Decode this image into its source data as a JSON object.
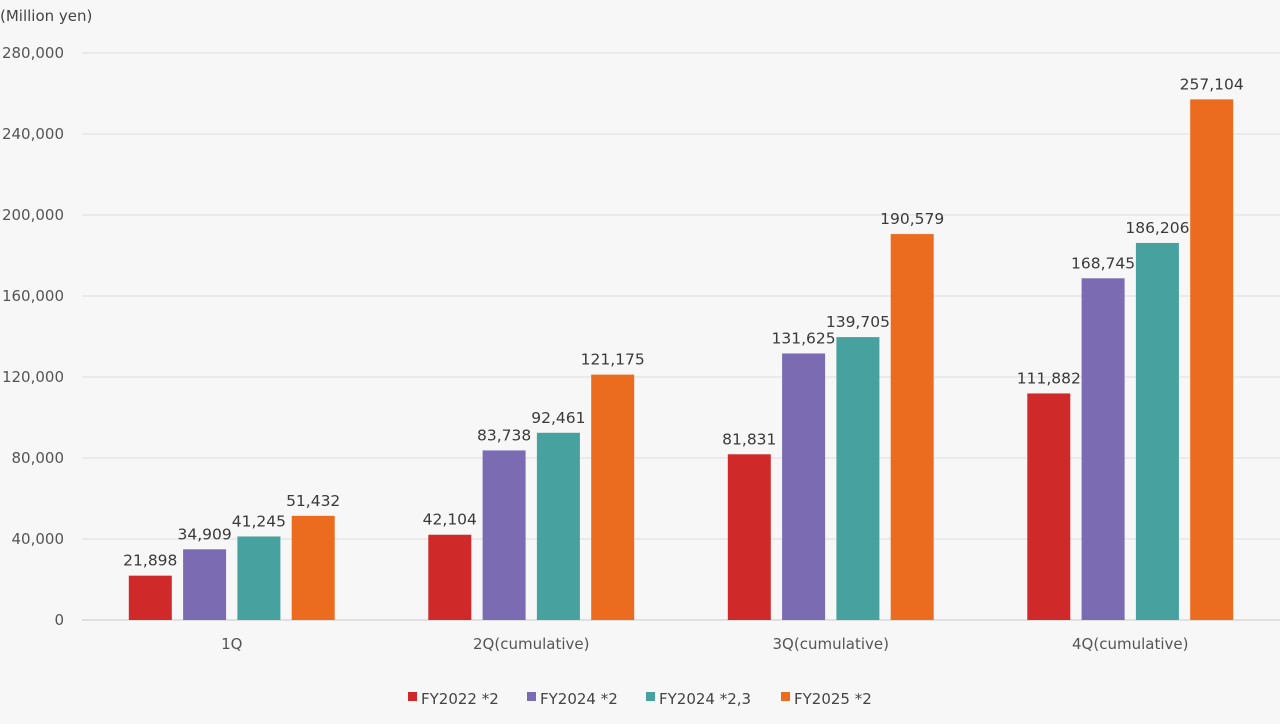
{
  "chart_data": {
    "type": "bar",
    "unit_label": "(Million yen)",
    "categories": [
      "1Q",
      "2Q(cumulative)",
      "3Q(cumulative)",
      "4Q(cumulative)"
    ],
    "series": [
      {
        "name": "FY2022 *2",
        "color": "#cf2a29",
        "values": [
          21898,
          42104,
          81831,
          111882
        ],
        "labels": [
          "21,898",
          "42,104",
          "81,831",
          "111,882"
        ]
      },
      {
        "name": "FY2024 *2",
        "color": "#7a6bb2",
        "values": [
          34909,
          83738,
          131625,
          168745
        ],
        "labels": [
          "34,909",
          "83,738",
          "131,625",
          "168,745"
        ]
      },
      {
        "name": "FY2024 *2,3",
        "color": "#47a19e",
        "values": [
          41245,
          92461,
          139705,
          186206
        ],
        "labels": [
          "41,245",
          "92,461",
          "139,705",
          "186,206"
        ]
      },
      {
        "name": "FY2025 *2",
        "color": "#ec6c1f",
        "values": [
          51432,
          121175,
          190579,
          257104
        ],
        "labels": [
          "51,432",
          "121,175",
          "190,579",
          "257,104"
        ]
      }
    ],
    "y_ticks": [
      {
        "value": 0,
        "label": "0"
      },
      {
        "value": 40000,
        "label": "40,000"
      },
      {
        "value": 80000,
        "label": "80,000"
      },
      {
        "value": 120000,
        "label": "120,000"
      },
      {
        "value": 160000,
        "label": "160,000"
      },
      {
        "value": 200000,
        "label": "200,000"
      },
      {
        "value": 240000,
        "label": "240,000"
      },
      {
        "value": 280000,
        "label": "280,000"
      }
    ],
    "ylim": [
      0,
      280000
    ],
    "grid": true,
    "legend_position": "bottom-center"
  }
}
